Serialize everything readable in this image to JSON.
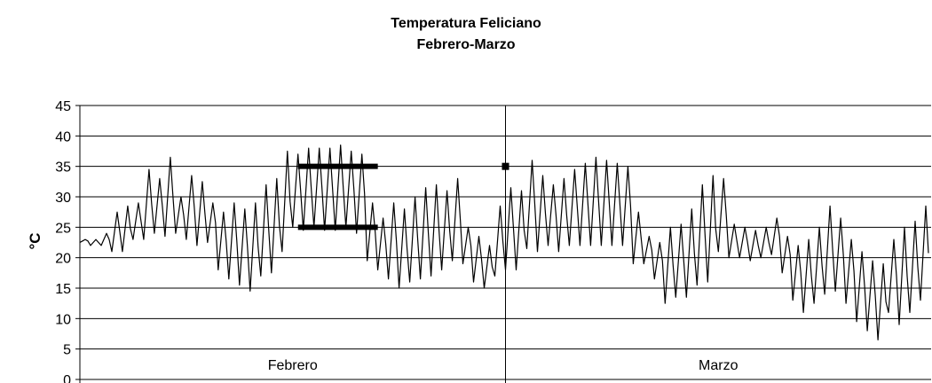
{
  "chart_data": {
    "type": "line",
    "title": "Temperatura Feliciano",
    "subtitle": "Febrero-Marzo",
    "xlabel": "",
    "ylabel": "°C",
    "ylim": [
      0,
      45
    ],
    "yticks": [
      0,
      5,
      10,
      15,
      20,
      25,
      30,
      35,
      40,
      45
    ],
    "categories": [
      "Febrero",
      "Marzo"
    ],
    "grid": "horizontal",
    "legend": "none",
    "series": [
      {
        "points_per_day": 4,
        "color": "#000000",
        "daily_range": [
          [
            22.5,
            23
          ],
          [
            22,
            23
          ],
          [
            22,
            24
          ],
          [
            21,
            27.5
          ],
          [
            21,
            28.5
          ],
          [
            23,
            29
          ],
          [
            23,
            34.5
          ],
          [
            24,
            33
          ],
          [
            23.5,
            36.5
          ],
          [
            24,
            30
          ],
          [
            23,
            33.5
          ],
          [
            22,
            32.5
          ],
          [
            22.5,
            29
          ],
          [
            18,
            27.5
          ],
          [
            16.5,
            29
          ],
          [
            15.5,
            28
          ],
          [
            14.5,
            29
          ],
          [
            17,
            32
          ],
          [
            17.5,
            33
          ],
          [
            21,
            37.5
          ],
          [
            25,
            37
          ],
          [
            24.5,
            38
          ],
          [
            25,
            38
          ],
          [
            24.5,
            38
          ],
          [
            24.5,
            38.5
          ],
          [
            25,
            37.5
          ],
          [
            24,
            37
          ],
          [
            19.5,
            29
          ],
          [
            18,
            26.5
          ],
          [
            16.5,
            29
          ],
          [
            15,
            28
          ],
          [
            16,
            30
          ],
          [
            16.5,
            31.5
          ],
          [
            17,
            32
          ],
          [
            18,
            31
          ],
          [
            19.5,
            33
          ],
          [
            19,
            25
          ],
          [
            16,
            23.5
          ],
          [
            15,
            22
          ],
          [
            17,
            28.5
          ],
          [
            18,
            31.5
          ],
          [
            18,
            31
          ],
          [
            21.5,
            36
          ],
          [
            21,
            33.5
          ],
          [
            22,
            32
          ],
          [
            21,
            33
          ],
          [
            22,
            34.5
          ],
          [
            22,
            35.5
          ],
          [
            22,
            36.5
          ],
          [
            22,
            36
          ],
          [
            22,
            35.5
          ],
          [
            22,
            35
          ],
          [
            19,
            27.5
          ],
          [
            19,
            23.5
          ],
          [
            16.5,
            22.5
          ],
          [
            12.5,
            25
          ],
          [
            13.5,
            25.5
          ],
          [
            13.5,
            28
          ],
          [
            15.5,
            32
          ],
          [
            16,
            33.5
          ],
          [
            21,
            33
          ],
          [
            20,
            25.5
          ],
          [
            20,
            25
          ],
          [
            19.5,
            24.5
          ],
          [
            20,
            25
          ],
          [
            20.5,
            26.5
          ],
          [
            17.5,
            23.5
          ],
          [
            13,
            22
          ],
          [
            11,
            23
          ],
          [
            12.5,
            25
          ],
          [
            14,
            28.5
          ],
          [
            14.5,
            26.5
          ],
          [
            12.5,
            23
          ],
          [
            9.5,
            21
          ],
          [
            8,
            19.5
          ],
          [
            6.5,
            19
          ],
          [
            11,
            23
          ],
          [
            9,
            25
          ],
          [
            11,
            26
          ],
          [
            13,
            28.5
          ]
        ]
      },
      {
        "name": "",
        "color": "#000000",
        "type": "segment",
        "x": [
          20.5,
          28
        ],
        "values": [
          35,
          35
        ]
      },
      {
        "name": "",
        "color": "#000000",
        "type": "segment",
        "x": [
          20.5,
          28
        ],
        "values": [
          25,
          25
        ]
      },
      {
        "name": "",
        "color": "#000000",
        "type": "marker",
        "x": [
          40
        ],
        "values": [
          35
        ]
      }
    ]
  }
}
